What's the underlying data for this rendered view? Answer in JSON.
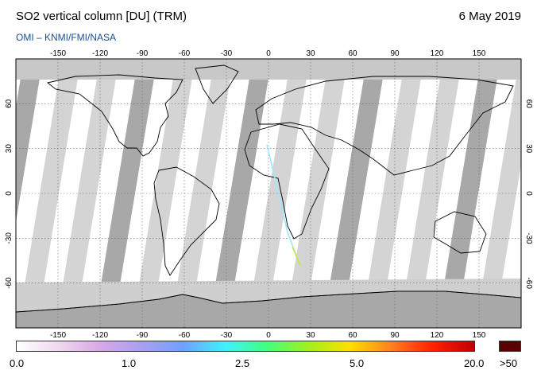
{
  "header": {
    "title": "SO2 vertical column [DU] (TRM)",
    "date": "6 May 2019",
    "credit": "OMI  –  KNMI/FMI/NASA"
  },
  "map": {
    "lon_ticks": [
      "-150",
      "-120",
      "-90",
      "-60",
      "-30",
      "0",
      "30",
      "60",
      "90",
      "120",
      "150"
    ],
    "lat_ticks": [
      "60",
      "30",
      "0",
      "-30",
      "-60"
    ],
    "colors": {
      "no_data_swath": "#cccccc",
      "polar_gap": "#bdbdbd",
      "overlap_swath": "#999999",
      "coast": "#000000"
    }
  },
  "legend": {
    "scale_labels": [
      "0.0",
      "1.0",
      "2.5",
      "5.0",
      "20.0"
    ],
    "over_label": ">50",
    "over_color": "#5a0000",
    "gradient": [
      "#ffffff",
      "#f0d8f0",
      "#d8a8e8",
      "#a9a0f0",
      "#6fa0ff",
      "#40f0ff",
      "#40ff80",
      "#a0f020",
      "#ffe000",
      "#ff8020",
      "#ff2000",
      "#c00000"
    ]
  }
}
